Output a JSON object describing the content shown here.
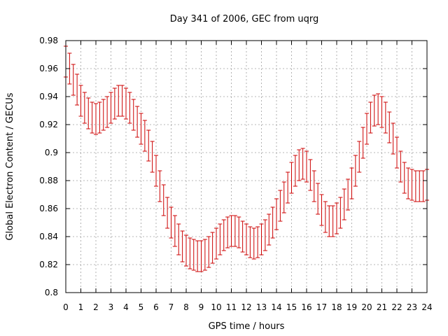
{
  "chart_data": {
    "type": "scatter",
    "title": "Day 341 of 2006, GEC from uqrg",
    "xlabel": "GPS time / hours",
    "ylabel": "Global Electron Content / GECUs",
    "xlim": [
      0,
      24
    ],
    "ylim": [
      0.8,
      0.98
    ],
    "xticks": [
      "0",
      "1",
      "2",
      "3",
      "4",
      "5",
      "6",
      "7",
      "8",
      "9",
      "10",
      "11",
      "12",
      "13",
      "14",
      "15",
      "16",
      "17",
      "18",
      "19",
      "20",
      "21",
      "22",
      "23",
      "24"
    ],
    "yticks": [
      "0.8",
      "0.82",
      "0.84",
      "0.86",
      "0.88",
      "0.9",
      "0.92",
      "0.94",
      "0.96",
      "0.98"
    ],
    "grid": true,
    "series_color": "#cc0000",
    "error_half_width": 0.011,
    "series": [
      {
        "name": "GEC",
        "x": [
          0.0,
          0.25,
          0.5,
          0.75,
          1.0,
          1.25,
          1.5,
          1.75,
          2.0,
          2.25,
          2.5,
          2.75,
          3.0,
          3.25,
          3.5,
          3.75,
          4.0,
          4.25,
          4.5,
          4.75,
          5.0,
          5.25,
          5.5,
          5.75,
          6.0,
          6.25,
          6.5,
          6.75,
          7.0,
          7.25,
          7.5,
          7.75,
          8.0,
          8.25,
          8.5,
          8.75,
          9.0,
          9.25,
          9.5,
          9.75,
          10.0,
          10.25,
          10.5,
          10.75,
          11.0,
          11.25,
          11.5,
          11.75,
          12.0,
          12.25,
          12.5,
          12.75,
          13.0,
          13.25,
          13.5,
          13.75,
          14.0,
          14.25,
          14.5,
          14.75,
          15.0,
          15.25,
          15.5,
          15.75,
          16.0,
          16.25,
          16.5,
          16.75,
          17.0,
          17.25,
          17.5,
          17.75,
          18.0,
          18.25,
          18.5,
          18.75,
          19.0,
          19.25,
          19.5,
          19.75,
          20.0,
          20.25,
          20.5,
          20.75,
          21.0,
          21.25,
          21.5,
          21.75,
          22.0,
          22.25,
          22.5,
          22.75,
          23.0,
          23.25,
          23.5,
          23.75,
          24.0
        ],
        "y": [
          0.965,
          0.96,
          0.952,
          0.945,
          0.937,
          0.932,
          0.928,
          0.925,
          0.924,
          0.925,
          0.927,
          0.929,
          0.932,
          0.935,
          0.937,
          0.937,
          0.935,
          0.932,
          0.927,
          0.922,
          0.917,
          0.912,
          0.905,
          0.897,
          0.887,
          0.876,
          0.866,
          0.857,
          0.85,
          0.844,
          0.838,
          0.833,
          0.83,
          0.828,
          0.827,
          0.826,
          0.826,
          0.827,
          0.829,
          0.832,
          0.835,
          0.838,
          0.841,
          0.843,
          0.844,
          0.844,
          0.843,
          0.84,
          0.838,
          0.836,
          0.835,
          0.836,
          0.838,
          0.841,
          0.845,
          0.85,
          0.856,
          0.862,
          0.868,
          0.875,
          0.882,
          0.887,
          0.891,
          0.892,
          0.89,
          0.884,
          0.876,
          0.867,
          0.859,
          0.854,
          0.851,
          0.851,
          0.853,
          0.857,
          0.863,
          0.87,
          0.878,
          0.887,
          0.897,
          0.907,
          0.917,
          0.925,
          0.93,
          0.931,
          0.929,
          0.925,
          0.918,
          0.91,
          0.9,
          0.89,
          0.882,
          0.878,
          0.877,
          0.876,
          0.876,
          0.876,
          0.877
        ]
      }
    ]
  }
}
